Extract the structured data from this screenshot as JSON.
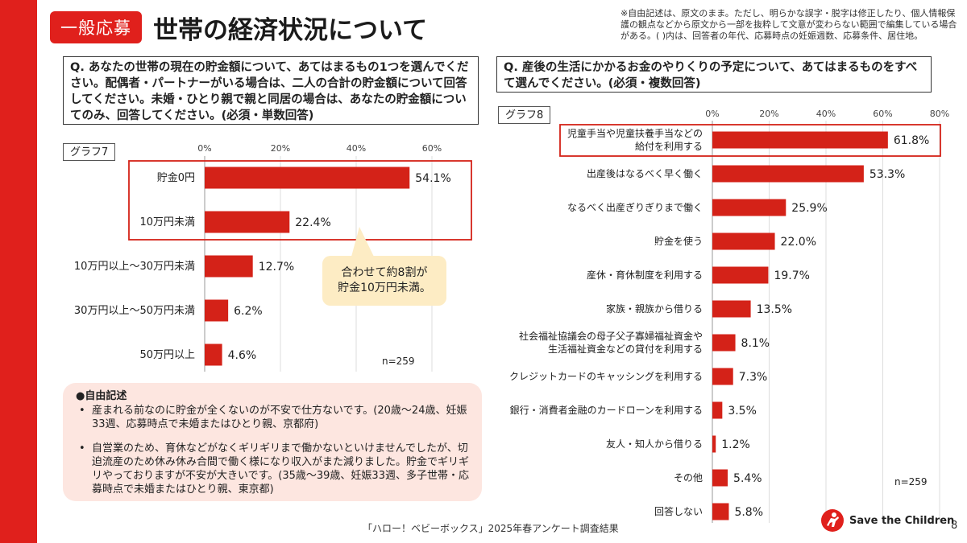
{
  "badge": "一般応募",
  "title": "世帯の経済状況について",
  "note": "※自由記述は、原文のまま。ただし、明らかな誤字・脱字は修正したり、個人情報保護の観点などから原文から一部を抜粋して文意が変わらない範囲で編集している場合がある。( )内は、回答者の年代、応募時点の妊娠週数、応募条件、居住地。",
  "left_question": "Q. あなたの世帯の現在の貯金額について、あてはまるもの1つを選んでください。配偶者・パートナーがいる場合は、二人の合計の貯金額について回答してください。未婚・ひとり親で親と同居の場合は、あなたの貯金額についてのみ、回答してください。(必須・単数回答)",
  "right_question": "Q. 産後の生活にかかるお金のやりくりの予定について、あてはまるものをすべて選んでください。(必須・複数回答)",
  "callout": {
    "line1": "合わせて約8割が",
    "line2": "貯金10万円未満。"
  },
  "comments": {
    "title": "●自由記述",
    "items": [
      "産まれる前なのに貯金が全くないのが不安で仕方ないです。(20歳～24歳、妊娠33週、応募時点で未婚またはひとり親、京都府)",
      "自営業のため、育休などがなくギリギリまで働かないといけませんでしたが、切迫流産のため休み休み合間で働く様になり収入がまた減りました。貯金でギリギリやっておりますが不安が大きいです。(35歳～39歳、妊娠33週、多子世帯・応募時点で未婚またはひとり親、東京都)"
    ]
  },
  "footer": "「ハロー！ベビーボックス」2025年春アンケート調査結果",
  "page_number": "8",
  "logo_text": "Save the Children",
  "colors": {
    "accent": "#e0201c",
    "bar": "#d42218",
    "callout": "#fdecc4",
    "comment_bg": "#fde6e0"
  },
  "chart_data": [
    {
      "type": "bar",
      "orientation": "horizontal",
      "label": "グラフ7",
      "categories": [
        "貯金0円",
        "10万円未満",
        "10万円以上～30万円未満",
        "30万円以上～50万円未満",
        "50万円以上"
      ],
      "values": [
        54.1,
        22.4,
        12.7,
        6.2,
        4.6
      ],
      "value_labels": [
        "54.1%",
        "22.4%",
        "12.7%",
        "6.2%",
        "4.6%"
      ],
      "ticks": [
        "0%",
        "20%",
        "40%",
        "60%"
      ],
      "xlim": [
        0,
        60
      ],
      "n": "n=259",
      "highlight": [
        0,
        1
      ]
    },
    {
      "type": "bar",
      "orientation": "horizontal",
      "label": "グラフ8",
      "categories": [
        "児童手当や児童扶養手当などの\n給付を利用する",
        "出産後はなるべく早く働く",
        "なるべく出産ぎりぎりまで働く",
        "貯金を使う",
        "産休・育休制度を利用する",
        "家族・親族から借りる",
        "社会福祉協議会の母子父子寡婦福祉資金や\n生活福祉資金などの貸付を利用する",
        "クレジットカードのキャッシングを利用する",
        "銀行・消費者金融のカードローンを利用する",
        "友人・知人から借りる",
        "その他",
        "回答しない"
      ],
      "values": [
        61.8,
        53.3,
        25.9,
        22.0,
        19.7,
        13.5,
        8.1,
        7.3,
        3.5,
        1.2,
        5.4,
        5.8
      ],
      "value_labels": [
        "61.8%",
        "53.3%",
        "25.9%",
        "22.0%",
        "19.7%",
        "13.5%",
        "8.1%",
        "7.3%",
        "3.5%",
        "1.2%",
        "5.4%",
        "5.8%"
      ],
      "ticks": [
        "0%",
        "20%",
        "40%",
        "60%",
        "80%"
      ],
      "xlim": [
        0,
        80
      ],
      "n": "n=259",
      "highlight": [
        0
      ]
    }
  ]
}
